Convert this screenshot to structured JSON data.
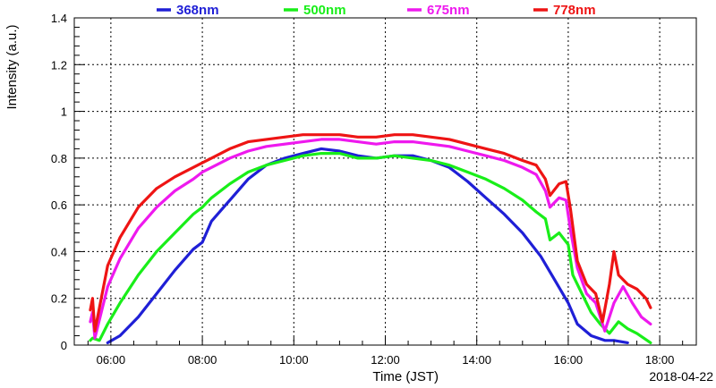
{
  "chart_data": {
    "type": "line",
    "xlabel": "Time (JST)",
    "ylabel": "Intensity (a.u.)",
    "date": "2018-04-22",
    "xlim": [
      5.2,
      18.8
    ],
    "ylim": [
      0,
      1.4
    ],
    "grid": true,
    "legend_position": "top",
    "x_ticks": [
      {
        "value": 6,
        "label": "06:00"
      },
      {
        "value": 8,
        "label": "08:00"
      },
      {
        "value": 10,
        "label": "10:00"
      },
      {
        "value": 12,
        "label": "12:00"
      },
      {
        "value": 14,
        "label": "14:00"
      },
      {
        "value": 16,
        "label": "16:00"
      },
      {
        "value": 18,
        "label": "18:00"
      }
    ],
    "y_ticks": [
      {
        "value": 0,
        "label": "0"
      },
      {
        "value": 0.2,
        "label": "0.2"
      },
      {
        "value": 0.4,
        "label": "0.4"
      },
      {
        "value": 0.6,
        "label": "0.6"
      },
      {
        "value": 0.8,
        "label": "0.8"
      },
      {
        "value": 1.0,
        "label": "1"
      },
      {
        "value": 1.2,
        "label": "1.2"
      },
      {
        "value": 1.4,
        "label": "1.4"
      }
    ],
    "series": [
      {
        "name": "368nm",
        "color": "#1f1fd6",
        "x": [
          5.93,
          6.2,
          6.6,
          7.0,
          7.4,
          7.8,
          8.0,
          8.2,
          8.6,
          9.0,
          9.4,
          9.8,
          10.2,
          10.6,
          11.0,
          11.4,
          11.8,
          12.2,
          12.6,
          13.0,
          13.4,
          13.8,
          14.2,
          14.6,
          15.0,
          15.4,
          15.7,
          16.0,
          16.2,
          16.5,
          16.8,
          17.0,
          17.3
        ],
        "y": [
          0.01,
          0.04,
          0.12,
          0.22,
          0.32,
          0.41,
          0.44,
          0.53,
          0.62,
          0.71,
          0.77,
          0.8,
          0.82,
          0.84,
          0.83,
          0.81,
          0.8,
          0.81,
          0.81,
          0.79,
          0.76,
          0.7,
          0.63,
          0.56,
          0.48,
          0.38,
          0.28,
          0.18,
          0.09,
          0.04,
          0.02,
          0.02,
          0.01
        ]
      },
      {
        "name": "500nm",
        "color": "#19ee19",
        "x": [
          5.55,
          5.6,
          5.75,
          5.93,
          6.2,
          6.6,
          7.0,
          7.4,
          7.8,
          8.0,
          8.2,
          8.6,
          9.0,
          9.4,
          9.8,
          10.2,
          10.6,
          11.0,
          11.4,
          11.8,
          12.2,
          12.6,
          13.0,
          13.4,
          13.8,
          14.2,
          14.6,
          15.0,
          15.3,
          15.5,
          15.6,
          15.8,
          16.0,
          16.1,
          16.3,
          16.5,
          16.7,
          16.9,
          17.1,
          17.3,
          17.5,
          17.8
        ],
        "y": [
          0.02,
          0.03,
          0.02,
          0.09,
          0.18,
          0.3,
          0.4,
          0.48,
          0.56,
          0.59,
          0.63,
          0.69,
          0.74,
          0.77,
          0.79,
          0.81,
          0.82,
          0.82,
          0.8,
          0.8,
          0.81,
          0.8,
          0.79,
          0.77,
          0.74,
          0.71,
          0.67,
          0.62,
          0.57,
          0.54,
          0.45,
          0.48,
          0.43,
          0.3,
          0.22,
          0.14,
          0.09,
          0.05,
          0.1,
          0.07,
          0.05,
          0.01
        ]
      },
      {
        "name": "675nm",
        "color": "#ee19ee",
        "x": [
          5.55,
          5.6,
          5.65,
          5.93,
          6.2,
          6.6,
          7.0,
          7.4,
          7.8,
          8.0,
          8.2,
          8.6,
          9.0,
          9.4,
          9.8,
          10.2,
          10.6,
          11.0,
          11.4,
          11.8,
          12.2,
          12.6,
          13.0,
          13.4,
          13.8,
          14.2,
          14.6,
          15.0,
          15.3,
          15.5,
          15.6,
          15.8,
          15.95,
          16.05,
          16.2,
          16.4,
          16.6,
          16.8,
          17.0,
          17.2,
          17.4,
          17.6,
          17.8
        ],
        "y": [
          0.1,
          0.14,
          0.03,
          0.25,
          0.37,
          0.5,
          0.59,
          0.66,
          0.71,
          0.74,
          0.76,
          0.8,
          0.83,
          0.85,
          0.86,
          0.87,
          0.88,
          0.88,
          0.87,
          0.86,
          0.87,
          0.87,
          0.86,
          0.85,
          0.83,
          0.81,
          0.79,
          0.76,
          0.73,
          0.66,
          0.59,
          0.63,
          0.62,
          0.49,
          0.33,
          0.22,
          0.18,
          0.06,
          0.18,
          0.25,
          0.18,
          0.12,
          0.09
        ]
      },
      {
        "name": "778nm",
        "color": "#ee1414",
        "x": [
          5.55,
          5.6,
          5.65,
          5.93,
          6.2,
          6.6,
          7.0,
          7.4,
          7.8,
          8.0,
          8.2,
          8.6,
          9.0,
          9.4,
          9.8,
          10.2,
          10.6,
          11.0,
          11.4,
          11.8,
          12.2,
          12.6,
          13.0,
          13.4,
          13.8,
          14.2,
          14.6,
          15.0,
          15.3,
          15.5,
          15.6,
          15.8,
          15.95,
          16.05,
          16.2,
          16.4,
          16.6,
          16.75,
          16.9,
          17.0,
          17.1,
          17.3,
          17.5,
          17.7,
          17.8
        ],
        "y": [
          0.15,
          0.2,
          0.06,
          0.34,
          0.46,
          0.59,
          0.67,
          0.72,
          0.76,
          0.78,
          0.8,
          0.84,
          0.87,
          0.88,
          0.89,
          0.9,
          0.9,
          0.9,
          0.89,
          0.89,
          0.9,
          0.9,
          0.89,
          0.88,
          0.86,
          0.84,
          0.82,
          0.79,
          0.77,
          0.71,
          0.64,
          0.69,
          0.7,
          0.58,
          0.36,
          0.26,
          0.22,
          0.1,
          0.26,
          0.4,
          0.3,
          0.26,
          0.24,
          0.2,
          0.16
        ]
      }
    ]
  }
}
